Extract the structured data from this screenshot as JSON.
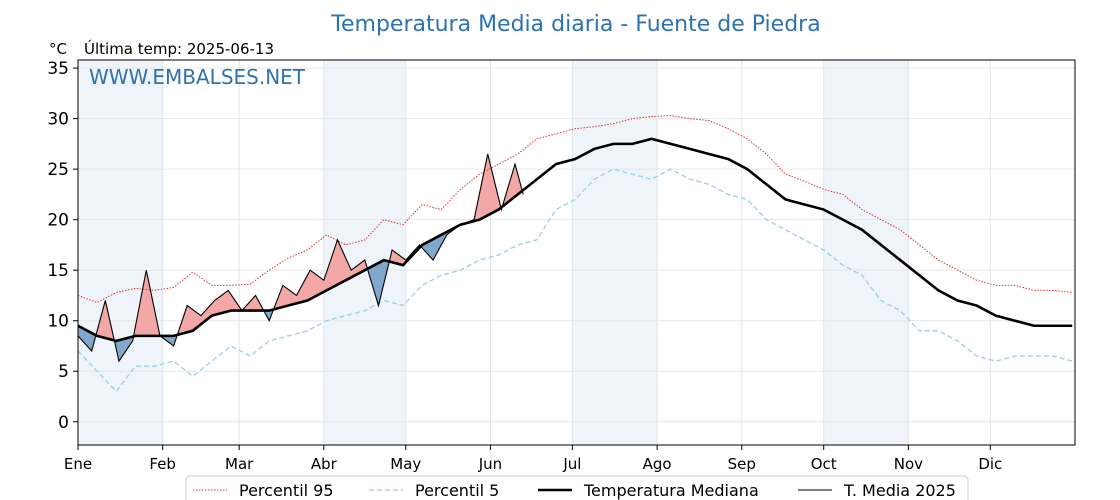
{
  "chart_data": {
    "type": "line",
    "title": "Temperatura Media diaria - Fuente de Piedra",
    "unit_label": "°C",
    "last_temp_label": "Última temp: 2025-06-13",
    "watermark": "WWW.EMBALSES.NET",
    "xlabel": "",
    "ylabel": "",
    "ylim": [
      -2.3,
      35.8
    ],
    "yticks": [
      0,
      5,
      10,
      15,
      20,
      25,
      30,
      35
    ],
    "x_unit": "day of year",
    "xlim": [
      1,
      366
    ],
    "month_ticks": [
      {
        "label": "Ene",
        "day": 1
      },
      {
        "label": "Feb",
        "day": 32
      },
      {
        "label": "Mar",
        "day": 60
      },
      {
        "label": "Abr",
        "day": 91
      },
      {
        "label": "May",
        "day": 121
      },
      {
        "label": "Jun",
        "day": 152
      },
      {
        "label": "Jul",
        "day": 182
      },
      {
        "label": "Ago",
        "day": 213
      },
      {
        "label": "Sep",
        "day": 244
      },
      {
        "label": "Oct",
        "day": 274
      },
      {
        "label": "Nov",
        "day": 305
      },
      {
        "label": "Dic",
        "day": 335
      }
    ],
    "shaded_month_bands": [
      [
        1,
        32
      ],
      [
        91,
        121
      ],
      [
        182,
        213
      ],
      [
        274,
        305
      ]
    ],
    "grid": true,
    "legend_position": "bottom-center",
    "colors": {
      "title": "#2e72ae",
      "p95": "#e3312e",
      "p5": "#9ccfe0",
      "median": "#000000",
      "current": "#000000",
      "above_fill": "#f2a2a2",
      "above_fill_strong": "#e05555",
      "below_fill": "#7aa3c7",
      "band": "#eef4fa"
    },
    "series": [
      {
        "name": "Percentil 95",
        "style": "dotted-red",
        "x": [
          1,
          8,
          15,
          22,
          29,
          36,
          43,
          50,
          57,
          64,
          71,
          78,
          85,
          92,
          99,
          106,
          113,
          120,
          127,
          134,
          141,
          148,
          155,
          162,
          169,
          176,
          183,
          190,
          197,
          204,
          211,
          218,
          225,
          232,
          239,
          246,
          253,
          260,
          267,
          274,
          281,
          288,
          295,
          302,
          309,
          316,
          323,
          330,
          337,
          344,
          351,
          358,
          365
        ],
        "y": [
          12.5,
          11.8,
          12.8,
          13.2,
          13.0,
          13.3,
          14.8,
          13.5,
          13.5,
          13.6,
          15.0,
          16.2,
          17.0,
          18.5,
          17.5,
          18.0,
          20.0,
          19.5,
          21.5,
          21.0,
          23.0,
          24.5,
          25.5,
          26.5,
          28.0,
          28.5,
          29.0,
          29.2,
          29.5,
          30.0,
          30.2,
          30.3,
          30.0,
          29.8,
          29.0,
          28.0,
          26.5,
          24.5,
          23.8,
          23.0,
          22.5,
          21.0,
          20.0,
          19.0,
          17.5,
          16.0,
          15.0,
          14.0,
          13.5,
          13.5,
          13.0,
          13.0,
          12.8
        ]
      },
      {
        "name": "Percentil 5",
        "style": "dashed-lightblue",
        "x": [
          1,
          8,
          15,
          22,
          29,
          36,
          43,
          50,
          57,
          64,
          71,
          78,
          85,
          92,
          99,
          106,
          113,
          120,
          127,
          134,
          141,
          148,
          155,
          162,
          169,
          176,
          183,
          190,
          197,
          204,
          211,
          218,
          225,
          232,
          239,
          246,
          253,
          260,
          267,
          274,
          281,
          288,
          295,
          302,
          309,
          316,
          323,
          330,
          337,
          344,
          351,
          358,
          365
        ],
        "y": [
          7.0,
          5.0,
          3.0,
          5.5,
          5.5,
          6.0,
          4.5,
          6.0,
          7.5,
          6.5,
          8.0,
          8.5,
          9.0,
          10.0,
          10.5,
          11.0,
          12.0,
          11.5,
          13.5,
          14.5,
          15.0,
          16.0,
          16.5,
          17.5,
          18.0,
          21.0,
          22.0,
          24.0,
          25.0,
          24.5,
          24.0,
          25.0,
          24.0,
          23.5,
          22.5,
          22.0,
          20.0,
          19.0,
          18.0,
          17.0,
          15.5,
          14.5,
          12.0,
          11.0,
          9.0,
          9.0,
          8.0,
          6.5,
          6.0,
          6.5,
          6.5,
          6.5,
          6.0
        ]
      },
      {
        "name": "Temperatura Mediana",
        "style": "thick-black",
        "x": [
          1,
          8,
          15,
          22,
          29,
          36,
          43,
          50,
          57,
          64,
          71,
          78,
          85,
          92,
          99,
          106,
          113,
          120,
          127,
          134,
          141,
          148,
          155,
          162,
          169,
          176,
          183,
          190,
          197,
          204,
          211,
          218,
          225,
          232,
          239,
          246,
          253,
          260,
          267,
          274,
          281,
          288,
          295,
          302,
          309,
          316,
          323,
          330,
          337,
          344,
          351,
          358,
          365
        ],
        "y": [
          9.5,
          8.5,
          8.0,
          8.5,
          8.5,
          8.5,
          9.0,
          10.5,
          11.0,
          11.0,
          11.0,
          11.5,
          12.0,
          13.0,
          14.0,
          15.0,
          16.0,
          15.5,
          17.5,
          18.5,
          19.5,
          20.0,
          21.0,
          22.5,
          24.0,
          25.5,
          26.0,
          27.0,
          27.5,
          27.5,
          28.0,
          27.5,
          27.0,
          26.5,
          26.0,
          25.0,
          23.5,
          22.0,
          21.5,
          21.0,
          20.0,
          19.0,
          17.5,
          16.0,
          14.5,
          13.0,
          12.0,
          11.5,
          10.5,
          10.0,
          9.5,
          9.5,
          9.5
        ]
      },
      {
        "name": "T. Media 2025",
        "style": "thin-black",
        "x": [
          1,
          6,
          11,
          16,
          21,
          26,
          31,
          36,
          41,
          46,
          51,
          56,
          61,
          66,
          71,
          76,
          81,
          86,
          91,
          96,
          101,
          106,
          111,
          116,
          121,
          126,
          131,
          136,
          141,
          146,
          151,
          156,
          161,
          164
        ],
        "y": [
          8.5,
          7.0,
          12.0,
          6.0,
          8.0,
          15.0,
          8.5,
          7.5,
          11.5,
          10.5,
          12.0,
          13.0,
          11.0,
          12.5,
          10.0,
          13.5,
          12.5,
          15.0,
          14.0,
          18.0,
          15.0,
          16.0,
          11.5,
          17.0,
          16.0,
          17.5,
          16.0,
          18.5,
          19.5,
          20.0,
          26.5,
          21.0,
          25.5,
          22.5
        ]
      }
    ]
  }
}
